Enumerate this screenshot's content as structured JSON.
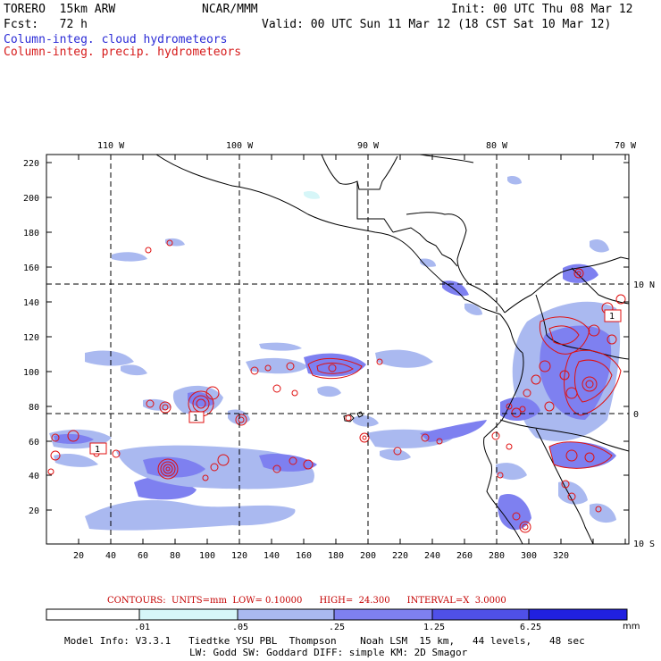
{
  "header": {
    "model": "TORERO  15km ARW",
    "org": "NCAR/MMM",
    "init": "Init: 00 UTC Thu 08 Mar 12",
    "fcst": "Fcst:   72 h",
    "valid": "Valid: 00 UTC Sun 11 Mar 12 (18 CST Sat 10 Mar 12)",
    "field_cloud": "Column-integ. cloud hydrometeors",
    "field_precip": "Column-integ. precip. hydrometeors"
  },
  "map": {
    "lon_labels": [
      "110 W",
      "100 W",
      "90 W",
      "80 W",
      "70 W"
    ],
    "lat_labels": [
      "10 N",
      "0",
      "10 S"
    ],
    "x_ticks": [
      "20",
      "40",
      "60",
      "80",
      "100",
      "120",
      "140",
      "160",
      "180",
      "200",
      "220",
      "240",
      "260",
      "280",
      "300",
      "320"
    ],
    "y_ticks": [
      "20",
      "40",
      "60",
      "80",
      "100",
      "120",
      "140",
      "160",
      "180",
      "200",
      "220"
    ],
    "contour_labels": [
      "1",
      "1",
      "1"
    ]
  },
  "contours": {
    "line": "CONTOURS:  UNITS=mm  LOW= 0.10000      HIGH=  24.300      INTERVAL=X  3.0000"
  },
  "colorbar": {
    "labels": [
      ".01",
      ".05",
      ".25",
      "1.25",
      "6.25"
    ],
    "unit": "mm",
    "colors": [
      "#ffffff",
      "#d6f6f8",
      "#aab9f0",
      "#7e80f0",
      "#4f50e8",
      "#2020e0"
    ]
  },
  "footer": {
    "line1": "Model Info: V3.3.1   Tiedtke YSU PBL  Thompson    Noah LSM  15 km,   44 levels,   48 sec",
    "line2": "LW: Godd SW: Goddard DIFF: simple KM: 2D Smagor"
  },
  "colors": {
    "cloud_title": "#2b2bd6",
    "precip_title": "#d61a1a",
    "contour": "#e01010"
  }
}
